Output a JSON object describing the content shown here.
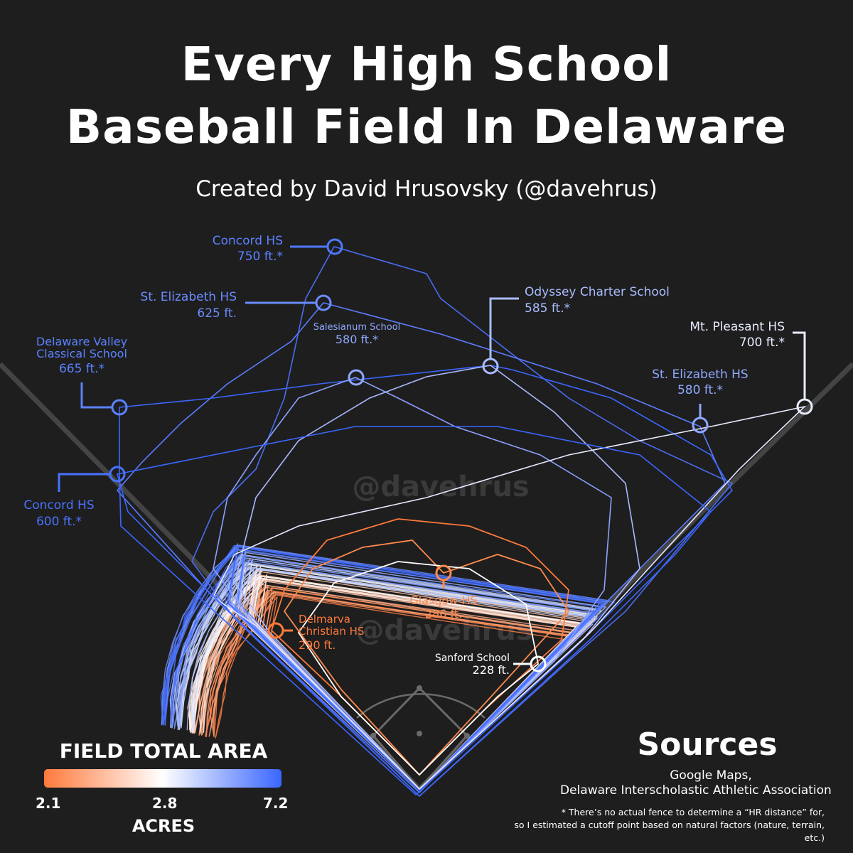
{
  "header": {
    "title_line1": "Every High School",
    "title_line2": "Baseball Field In Delaware",
    "subtitle": "Created by David Hrusovsky (@davehrus)"
  },
  "watermark": {
    "text": "@davehrus"
  },
  "colors": {
    "background": "#1e1e1e",
    "small_field": "#ff7a3c",
    "mid_field": "#ffffff",
    "large_field": "#3a66ff"
  },
  "chart_data": {
    "type": "field_outline_overlay",
    "title": "Every High School Baseball Field In Delaware",
    "value_unit": "ft.",
    "annotated_fields": [
      {
        "name": "Concord HS",
        "distance": "750 ft.*",
        "color": "#5b82ff"
      },
      {
        "name": "St. Elizabeth HS",
        "distance": "625 ft.",
        "color": "#6b8cff"
      },
      {
        "name": "Salesianum School",
        "distance": "580 ft.*",
        "color": "#8fa8ff"
      },
      {
        "name": "Odyssey Charter School",
        "distance": "585 ft.*",
        "color": "#a9bcff"
      },
      {
        "name": "Mt. Pleasant HS",
        "distance": "700 ft.*",
        "color": "#e8ecff"
      },
      {
        "name": "St. Elizabeth HS",
        "distance": "580 ft.*",
        "color": "#8fa8ff"
      },
      {
        "name": "Delaware Valley Classical School",
        "distance": "665 ft.*",
        "color": "#5b82ff"
      },
      {
        "name": "Concord HS",
        "distance": "600 ft.*",
        "color": "#4a72ff"
      },
      {
        "name": "Glasgow HS",
        "distance": "286 ft.",
        "color": "#ff8a4c"
      },
      {
        "name": "Delmarva Christian HS",
        "distance": "290 ft.",
        "color": "#ff7a3c"
      },
      {
        "name": "Sanford School",
        "distance": "228 ft.",
        "color": "#ffffff"
      }
    ],
    "legend": {
      "title": "FIELD TOTAL AREA",
      "unit": "ACRES",
      "min": 2.1,
      "mid": 2.8,
      "max": 7.2,
      "min_label": "2.1",
      "mid_label": "2.8",
      "max_label": "7.2"
    }
  },
  "labels": {
    "concord_750": {
      "name": "Concord HS",
      "dist": "750 ft.*"
    },
    "stelizabeth_625": {
      "name": "St. Elizabeth HS",
      "dist": "625 ft."
    },
    "salesianum": {
      "name": "Salesianum School",
      "dist": "580 ft.*"
    },
    "odyssey": {
      "name": "Odyssey Charter School",
      "dist": "585 ft.*"
    },
    "mtpleasant": {
      "name": "Mt. Pleasant HS",
      "dist": "700 ft.*"
    },
    "stelizabeth_580": {
      "name": "St. Elizabeth HS",
      "dist": "580 ft.*"
    },
    "dvcs": {
      "name1": "Delaware Valley",
      "name2": "Classical School",
      "dist": "665 ft.*"
    },
    "concord_600": {
      "name": "Concord HS",
      "dist": "600 ft.*"
    },
    "glasgow": {
      "name": "Glasgow HS",
      "dist": "286 ft."
    },
    "delmarva": {
      "name1": "Delmarva",
      "name2": "Christian HS",
      "dist": "290 ft."
    },
    "sanford": {
      "name": "Sanford School",
      "dist": "228 ft."
    }
  },
  "sources": {
    "title": "Sources",
    "line1": "Google Maps,",
    "line2": "Delaware Interscholastic Athletic Association",
    "footnote1": "* There’s no actual fence to determine a “HR distance” for,",
    "footnote2": "so I estimated a cutoff point based on natural factors (nature, terrain, etc.)"
  }
}
